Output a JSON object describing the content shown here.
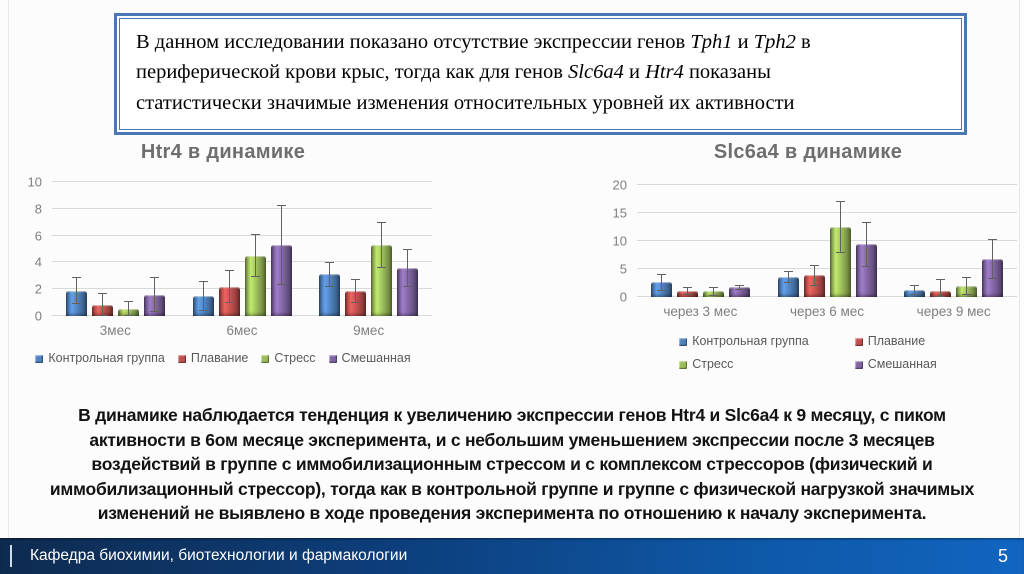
{
  "slide": {
    "background": "#fcfcfc"
  },
  "intro_box": {
    "border_color": "#4a77b5",
    "lines": [
      [
        {
          "text": "В данном исследовании показано отсутствие экспрессии генов ",
          "italic": false
        },
        {
          "text": "Tph1",
          "italic": true
        },
        {
          "text": " и ",
          "italic": false
        },
        {
          "text": "Tph2",
          "italic": true
        },
        {
          "text": " в",
          "italic": false
        }
      ],
      [
        {
          "text": "периферической крови крыс, тогда как для генов ",
          "italic": false
        },
        {
          "text": "Slc6a4",
          "italic": true
        },
        {
          "text": " и ",
          "italic": false
        },
        {
          "text": "Htr4",
          "italic": true
        },
        {
          "text": " показаны",
          "italic": false
        }
      ],
      [
        {
          "text": "статистически значимые изменения относительных уровней их активности",
          "italic": false
        }
      ]
    ]
  },
  "chart_data": [
    {
      "type": "bar",
      "title": "Htr4 в динамике",
      "title_color": "#6e6e6e",
      "categories": [
        "3мес",
        "6мес",
        "9мес"
      ],
      "series": [
        {
          "name": "Контрольная группа",
          "color": "#4F81BD",
          "values": [
            1.9,
            1.5,
            3.1
          ],
          "errors": [
            1.0,
            1.1,
            0.9
          ]
        },
        {
          "name": "Плавание",
          "color": "#C0504D",
          "values": [
            0.8,
            2.2,
            1.9
          ],
          "errors": [
            0.9,
            1.2,
            0.9
          ]
        },
        {
          "name": "Стресс",
          "color": "#9BBB59",
          "values": [
            0.5,
            4.5,
            5.3
          ],
          "errors": [
            0.6,
            1.6,
            1.7
          ]
        },
        {
          "name": "Смешанная",
          "color": "#8064A2",
          "values": [
            1.6,
            5.3,
            3.6
          ],
          "errors": [
            1.3,
            3.0,
            1.4
          ]
        }
      ],
      "ylim": [
        0,
        10
      ],
      "yticks": [
        0,
        2,
        4,
        6,
        8,
        10
      ],
      "grid_color": "#d9d9d9",
      "axis_label_color": "#7f7f7f",
      "legend_text_color": "#595959",
      "legend_position": "bottom",
      "legend_columns": 4,
      "grid": "on"
    },
    {
      "type": "bar",
      "title": "Slc6a4 в динамике",
      "title_color": "#6e6e6e",
      "categories": [
        "через 3 мес",
        "через 6 мес",
        "через 9 мес"
      ],
      "series": [
        {
          "name": "Контрольная группа",
          "color": "#4F81BD",
          "values": [
            2.6,
            3.6,
            1.3
          ],
          "errors": [
            1.6,
            1.1,
            0.9
          ]
        },
        {
          "name": "Плавание",
          "color": "#C0504D",
          "values": [
            1.1,
            3.9,
            1.0
          ],
          "errors": [
            0.7,
            1.9,
            2.2
          ]
        },
        {
          "name": "Стресс",
          "color": "#9BBB59",
          "values": [
            1.0,
            12.5,
            1.9
          ],
          "errors": [
            0.8,
            4.6,
            1.6
          ]
        },
        {
          "name": "Смешанная",
          "color": "#8064A2",
          "values": [
            1.7,
            9.4,
            6.8
          ],
          "errors": [
            0.5,
            4.0,
            3.6
          ]
        }
      ],
      "ylim": [
        0,
        20
      ],
      "yticks": [
        0,
        5,
        10,
        15,
        20
      ],
      "grid_color": "#d9d9d9",
      "axis_label_color": "#7f7f7f",
      "legend_text_color": "#595959",
      "legend_position": "bottom",
      "legend_columns": 2,
      "grid": "on"
    }
  ],
  "summary": {
    "text": "В динамике наблюдается тенденция к увеличению экспрессии генов Htr4 и Slc6a4 к 9 месяцу, с пиком активности в 6ом месяце эксперимента, и с небольшим уменьшением экспрессии после 3 месяцев воздействий в группе с иммобилизационным стрессом и с комплексом стрессоров (физический и иммобилизационный стрессор), тогда как в контрольной группе и группе с физической нагрузкой значимых изменений не выявлено в ходе проведения эксперимента по отношению к началу эксперимента."
  },
  "footer": {
    "department": "Кафедра биохимии, биотехнологии и фармакологии",
    "page_number": "5",
    "accent_color_left": "#0e2b50",
    "accent_color_right": "#1165c1"
  }
}
